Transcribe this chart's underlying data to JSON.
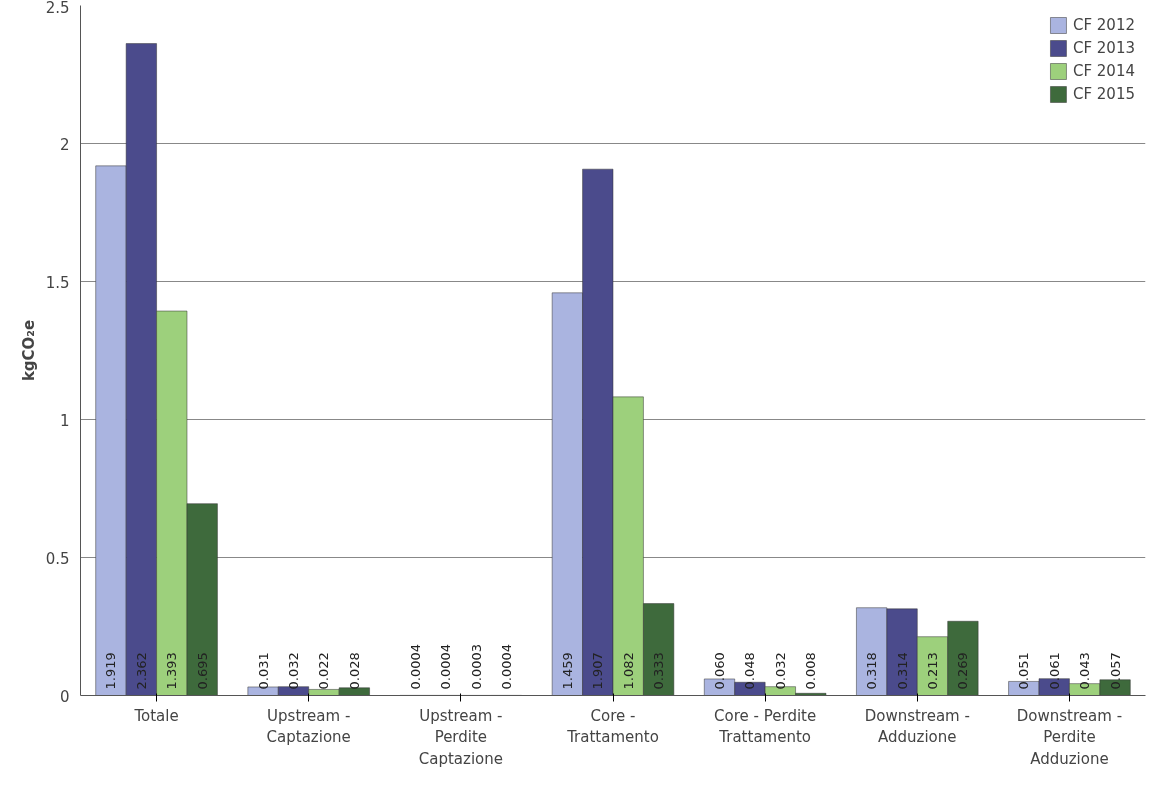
{
  "chart_data": {
    "type": "bar",
    "ylabel": "kgCO₂e",
    "categories": [
      "Totale",
      "Upstream - Captazione",
      "Upstream - Perdite Captazione",
      "Core - Trattamento",
      "Core - Perdite Trattamento",
      "Downstream - Adduzione",
      "Downstream - Perdite Adduzione"
    ],
    "series": [
      {
        "name": "CF 2012",
        "color": "#aab4e0",
        "values": [
          1.919,
          0.031,
          0.0004,
          1.459,
          0.06,
          0.318,
          0.051
        ],
        "value_labels": [
          "1.919",
          "0.031",
          "0.0004",
          "1.459",
          "0.060",
          "0.318",
          "0.051"
        ]
      },
      {
        "name": "CF 2013",
        "color": "#4b4b8c",
        "values": [
          2.362,
          0.032,
          0.0004,
          1.907,
          0.048,
          0.314,
          0.061
        ],
        "value_labels": [
          "2.362",
          "0.032",
          "0.0004",
          "1.907",
          "0.048",
          "0.314",
          "0.061"
        ]
      },
      {
        "name": "CF 2014",
        "color": "#9dd07c",
        "values": [
          1.393,
          0.022,
          0.0003,
          1.082,
          0.032,
          0.213,
          0.043
        ],
        "value_labels": [
          "1.393",
          "0.022",
          "0.0003",
          "1.082",
          "0.032",
          "0.213",
          "0.043"
        ]
      },
      {
        "name": "CF 2015",
        "color": "#3e6a3c",
        "values": [
          0.695,
          0.028,
          0.0004,
          0.333,
          0.008,
          0.269,
          0.057
        ],
        "value_labels": [
          "0.695",
          "0.028",
          "0.0004",
          "0.333",
          "0.008",
          "0.269",
          "0.057"
        ]
      }
    ],
    "ylim": [
      0,
      2.5
    ],
    "yticks": [
      0,
      {
        "value": 0.5,
        "label": "0.5"
      },
      1,
      {
        "value": 1.5,
        "label": "1.5"
      },
      2,
      {
        "value": 2.5,
        "label": "2.5"
      }
    ],
    "grid": "y",
    "legend": "top right"
  }
}
